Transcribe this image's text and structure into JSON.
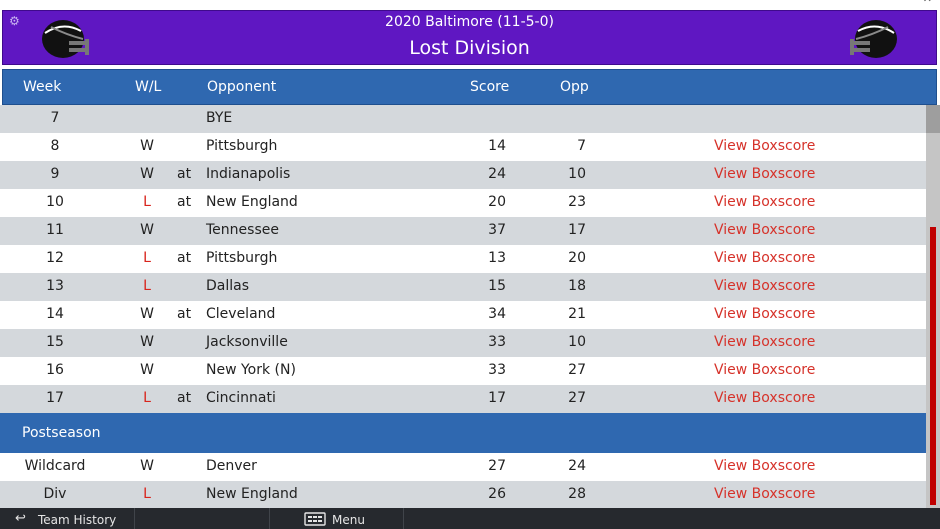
{
  "header": {
    "season_line": "2020 Baltimore (11-5-0)",
    "status_line": "Lost Division",
    "bg_color": "#5f17c2",
    "helmet_icon": "football-helmet-icon",
    "settings_icon": "gear-icon"
  },
  "columns": {
    "week": "Week",
    "wl": "W/L",
    "opponent": "Opponent",
    "score": "Score",
    "opp": "Opp"
  },
  "regular_season": [
    {
      "week": "7",
      "wl": "",
      "at": "",
      "opponent": "BYE",
      "score": "",
      "opp": "",
      "boxscore": ""
    },
    {
      "week": "8",
      "wl": "W",
      "at": "",
      "opponent": "Pittsburgh",
      "score": "14",
      "opp": "7",
      "boxscore": "View Boxscore"
    },
    {
      "week": "9",
      "wl": "W",
      "at": "at",
      "opponent": "Indianapolis",
      "score": "24",
      "opp": "10",
      "boxscore": "View Boxscore"
    },
    {
      "week": "10",
      "wl": "L",
      "at": "at",
      "opponent": "New England",
      "score": "20",
      "opp": "23",
      "boxscore": "View Boxscore"
    },
    {
      "week": "11",
      "wl": "W",
      "at": "",
      "opponent": "Tennessee",
      "score": "37",
      "opp": "17",
      "boxscore": "View Boxscore"
    },
    {
      "week": "12",
      "wl": "L",
      "at": "at",
      "opponent": "Pittsburgh",
      "score": "13",
      "opp": "20",
      "boxscore": "View Boxscore"
    },
    {
      "week": "13",
      "wl": "L",
      "at": "",
      "opponent": "Dallas",
      "score": "15",
      "opp": "18",
      "boxscore": "View Boxscore"
    },
    {
      "week": "14",
      "wl": "W",
      "at": "at",
      "opponent": "Cleveland",
      "score": "34",
      "opp": "21",
      "boxscore": "View Boxscore"
    },
    {
      "week": "15",
      "wl": "W",
      "at": "",
      "opponent": "Jacksonville",
      "score": "33",
      "opp": "10",
      "boxscore": "View Boxscore"
    },
    {
      "week": "16",
      "wl": "W",
      "at": "",
      "opponent": "New York (N)",
      "score": "33",
      "opp": "27",
      "boxscore": "View Boxscore"
    },
    {
      "week": "17",
      "wl": "L",
      "at": "at",
      "opponent": "Cincinnati",
      "score": "17",
      "opp": "27",
      "boxscore": "View Boxscore"
    }
  ],
  "postseason_label": "Postseason",
  "postseason": [
    {
      "week": "Wildcard",
      "wl": "W",
      "at": "",
      "opponent": "Denver",
      "score": "27",
      "opp": "24",
      "boxscore": "View Boxscore"
    },
    {
      "week": "Div",
      "wl": "L",
      "at": "",
      "opponent": "New England",
      "score": "26",
      "opp": "28",
      "boxscore": "View Boxscore"
    }
  ],
  "bottom_bar": {
    "team_history": "Team History",
    "team_history_icon": "back-arrow-icon",
    "menu": "Menu",
    "menu_icon": "menu-icon"
  },
  "colors": {
    "loss": "#d8241c",
    "boxscore_link": "#d6322a",
    "table_header": "#2f68b0",
    "scroll_thumb": "#c00000"
  }
}
